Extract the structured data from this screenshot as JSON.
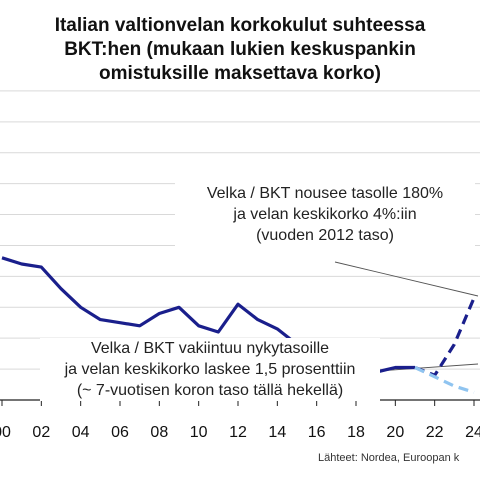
{
  "chart_data": {
    "type": "line",
    "title_lines": [
      "Italian valtionvelan korkokulut suhteessa",
      "BKT:hen (mukaan lukien keskuspankin",
      "omistuksille maksettava korko)"
    ],
    "x_ticks": [
      "00",
      "02",
      "04",
      "06",
      "08",
      "10",
      "12",
      "14",
      "16",
      "18",
      "20",
      "22",
      "24"
    ],
    "xlim": [
      2000,
      2024
    ],
    "ylim": [
      0,
      11
    ],
    "grid": true,
    "series": [
      {
        "key": "history",
        "style": "solid",
        "color": "#1a1f8c",
        "x": [
          2000,
          2001,
          2002,
          2003,
          2004,
          2005,
          2006,
          2007,
          2008,
          2009,
          2010,
          2011,
          2012,
          2013,
          2014,
          2015,
          2016,
          2017,
          2018,
          2019,
          2020,
          2021
        ],
        "y": [
          4.6,
          4.4,
          4.3,
          3.6,
          3.0,
          2.6,
          2.5,
          2.4,
          2.8,
          3.0,
          2.4,
          2.2,
          3.1,
          2.6,
          2.3,
          1.8,
          1.6,
          1.4,
          1.3,
          0.9,
          1.05,
          1.05
        ]
      },
      {
        "key": "scenario_up",
        "style": "dashed",
        "color": "#1a1f8c",
        "x": [
          2021,
          2022,
          2023,
          2024
        ],
        "y": [
          1.05,
          0.8,
          1.8,
          3.3
        ]
      },
      {
        "key": "scenario_flat",
        "style": "dashed",
        "color": "#8fc4f0",
        "x": [
          2021,
          2022,
          2023,
          2024
        ],
        "y": [
          1.05,
          0.75,
          0.45,
          0.25
        ]
      }
    ],
    "annotations": [
      {
        "key": "upper",
        "lines": [
          "Velka / BKT nousee tasolle 180%",
          "ja velan keskikorko 4%:iin",
          "(vuoden 2012 taso)"
        ]
      },
      {
        "key": "lower",
        "lines": [
          "Velka / BKT vakiintuu nykytasoille",
          "ja velan keskikorko laskee 1,5 prosenttiin",
          "(~ 7-vuotisen koron taso tällä hekellä)"
        ]
      }
    ],
    "source": "Lähteet: Nordea, Euroopan k"
  }
}
